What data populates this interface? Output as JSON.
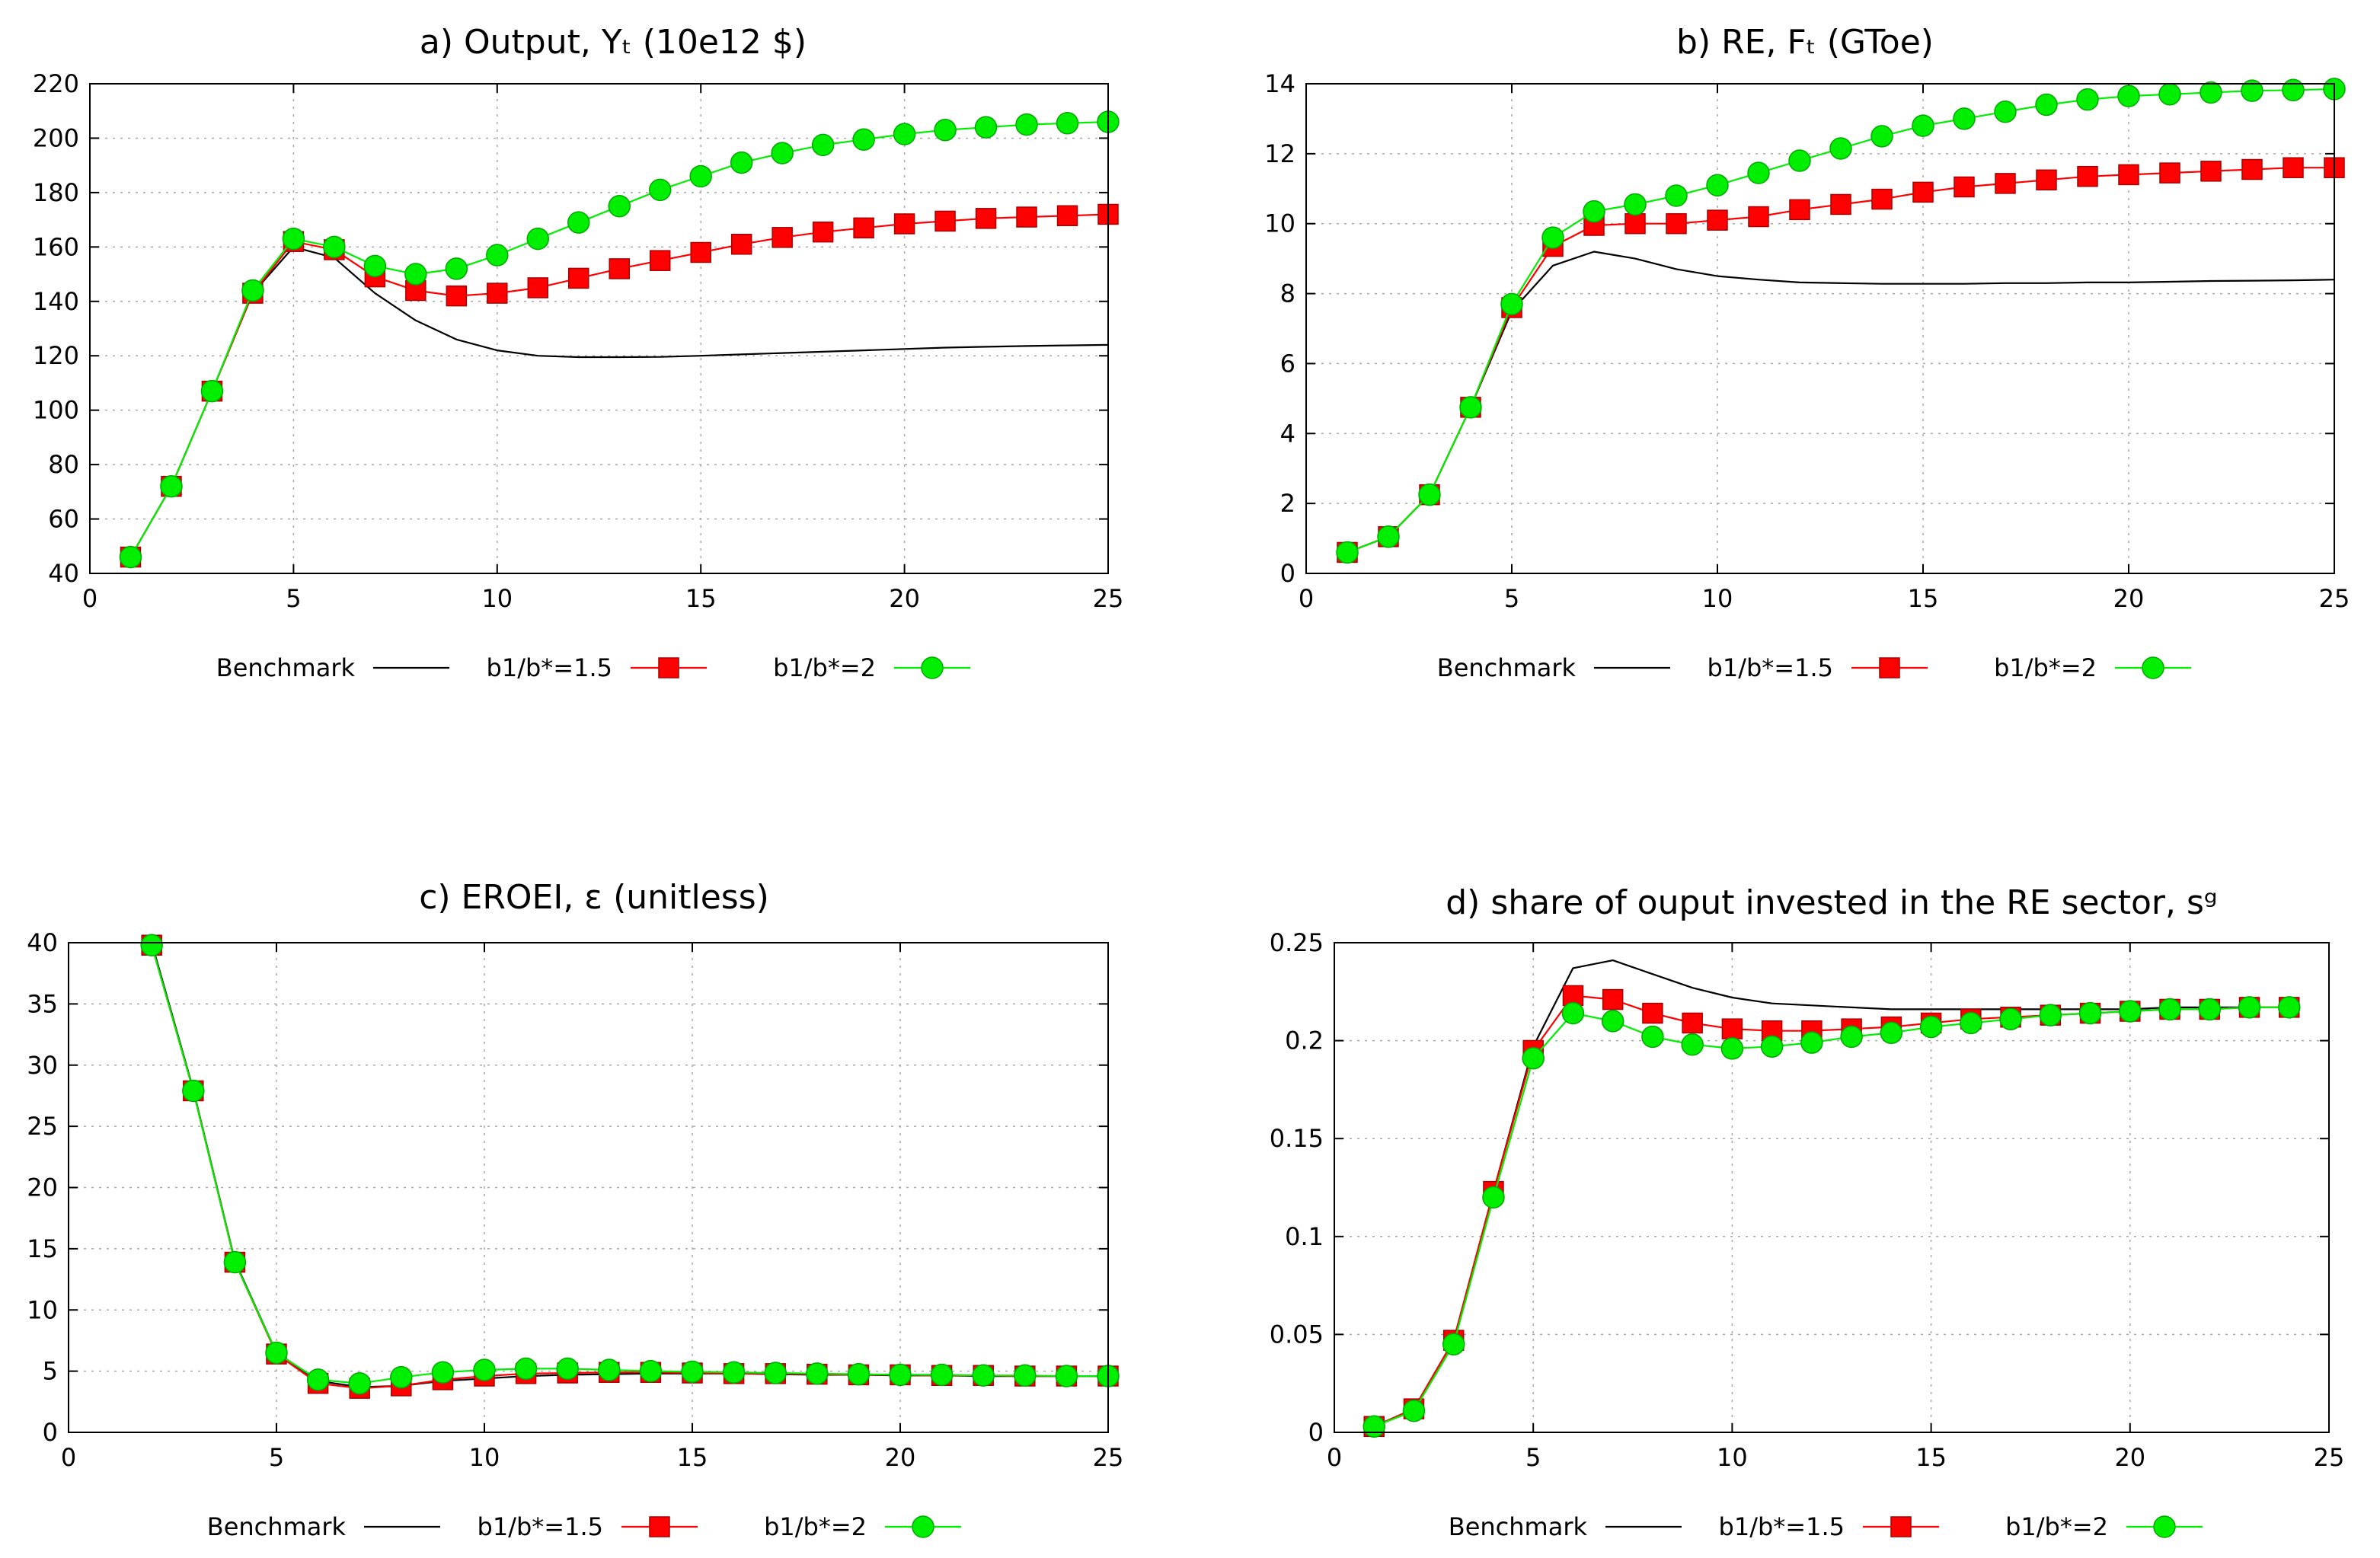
{
  "legend_labels": {
    "benchmark": "Benchmark",
    "b15": "b1/b*=1.5",
    "b2": "b1/b*=2"
  },
  "colors": {
    "benchmark": "#000000",
    "b15": "#ff0000",
    "b2": "#00ee00",
    "marker_edge_b15": "#aa0000",
    "marker_edge_b2": "#00aa00"
  },
  "chart_data": [
    {
      "id": "a",
      "type": "line",
      "title": "a) Output, Yₜ (10e12 $)",
      "xlim": [
        0,
        25
      ],
      "ylim": [
        40,
        220
      ],
      "xticks": [
        0,
        5,
        10,
        15,
        20,
        25
      ],
      "yticks": [
        40,
        60,
        80,
        100,
        120,
        140,
        160,
        180,
        200,
        220
      ],
      "grid": true,
      "legend_position": "below",
      "series": [
        {
          "name": "Benchmark",
          "marker": "none",
          "x": [
            1,
            2,
            3,
            4,
            5,
            6,
            7,
            8,
            9,
            10,
            11,
            12,
            13,
            14,
            15,
            16,
            17,
            18,
            19,
            20,
            21,
            22,
            23,
            24,
            25
          ],
          "values": [
            46,
            72,
            107,
            143,
            160,
            156,
            143,
            133,
            126,
            122,
            120,
            119.5,
            119.5,
            119.6,
            120,
            120.5,
            121,
            121.5,
            122,
            122.5,
            123,
            123.3,
            123.6,
            123.8,
            124
          ]
        },
        {
          "name": "b1/b*=1.5",
          "marker": "square",
          "x": [
            1,
            2,
            3,
            4,
            5,
            6,
            7,
            8,
            9,
            10,
            11,
            12,
            13,
            14,
            15,
            16,
            17,
            18,
            19,
            20,
            21,
            22,
            23,
            24,
            25
          ],
          "values": [
            46,
            72,
            107,
            143,
            162,
            159,
            149,
            144,
            142,
            143,
            145,
            148.5,
            152,
            155,
            158,
            161,
            163.5,
            165.5,
            167,
            168.5,
            169.5,
            170.5,
            171,
            171.5,
            172
          ]
        },
        {
          "name": "b1/b*=2",
          "marker": "circle",
          "x": [
            1,
            2,
            3,
            4,
            5,
            6,
            7,
            8,
            9,
            10,
            11,
            12,
            13,
            14,
            15,
            16,
            17,
            18,
            19,
            20,
            21,
            22,
            23,
            24,
            25
          ],
          "values": [
            46,
            72,
            107,
            144,
            163,
            160,
            153,
            150,
            152,
            157,
            163,
            169,
            175,
            181,
            186,
            191,
            194.5,
            197.5,
            199.5,
            201.5,
            203,
            204,
            205,
            205.5,
            206
          ]
        }
      ]
    },
    {
      "id": "b",
      "type": "line",
      "title": "b) RE, Fₜ (GToe)",
      "xlim": [
        0,
        25
      ],
      "ylim": [
        0,
        14
      ],
      "xticks": [
        0,
        5,
        10,
        15,
        20,
        25
      ],
      "yticks": [
        0,
        2,
        4,
        6,
        8,
        10,
        12,
        14
      ],
      "grid": true,
      "legend_position": "below",
      "series": [
        {
          "name": "Benchmark",
          "marker": "none",
          "x": [
            1,
            2,
            3,
            4,
            5,
            6,
            7,
            8,
            9,
            10,
            11,
            12,
            13,
            14,
            15,
            16,
            17,
            18,
            19,
            20,
            21,
            22,
            23,
            24,
            25
          ],
          "values": [
            0.6,
            1.05,
            2.25,
            4.75,
            7.5,
            8.8,
            9.2,
            9.0,
            8.7,
            8.5,
            8.4,
            8.32,
            8.3,
            8.28,
            8.28,
            8.28,
            8.3,
            8.3,
            8.32,
            8.32,
            8.34,
            8.36,
            8.37,
            8.38,
            8.4
          ]
        },
        {
          "name": "b1/b*=1.5",
          "marker": "square",
          "x": [
            1,
            2,
            3,
            4,
            5,
            6,
            7,
            8,
            9,
            10,
            11,
            12,
            13,
            14,
            15,
            16,
            17,
            18,
            19,
            20,
            21,
            22,
            23,
            24,
            25
          ],
          "values": [
            0.6,
            1.05,
            2.25,
            4.75,
            7.6,
            9.35,
            9.95,
            10.0,
            10.0,
            10.1,
            10.2,
            10.4,
            10.55,
            10.7,
            10.9,
            11.05,
            11.15,
            11.25,
            11.35,
            11.4,
            11.45,
            11.5,
            11.55,
            11.6,
            11.6
          ]
        },
        {
          "name": "b1/b*=2",
          "marker": "circle",
          "x": [
            1,
            2,
            3,
            4,
            5,
            6,
            7,
            8,
            9,
            10,
            11,
            12,
            13,
            14,
            15,
            16,
            17,
            18,
            19,
            20,
            21,
            22,
            23,
            24,
            25
          ],
          "values": [
            0.6,
            1.05,
            2.25,
            4.75,
            7.7,
            9.6,
            10.35,
            10.55,
            10.8,
            11.1,
            11.45,
            11.8,
            12.15,
            12.5,
            12.8,
            13.0,
            13.2,
            13.4,
            13.55,
            13.65,
            13.7,
            13.75,
            13.8,
            13.82,
            13.85
          ]
        }
      ]
    },
    {
      "id": "c",
      "type": "line",
      "title": "c) EROEI, ε (unitless)",
      "xlim": [
        0,
        25
      ],
      "ylim": [
        0,
        40
      ],
      "xticks": [
        0,
        5,
        10,
        15,
        20,
        25
      ],
      "yticks": [
        0,
        5,
        10,
        15,
        20,
        25,
        30,
        35,
        40
      ],
      "grid": true,
      "legend_position": "below",
      "series": [
        {
          "name": "Benchmark",
          "marker": "none",
          "x": [
            2,
            3,
            4,
            5,
            6,
            7,
            8,
            9,
            10,
            11,
            12,
            13,
            14,
            15,
            16,
            17,
            18,
            19,
            20,
            21,
            22,
            23,
            24,
            25
          ],
          "values": [
            40,
            28,
            14,
            6.5,
            4.2,
            3.7,
            3.8,
            4.2,
            4.4,
            4.6,
            4.7,
            4.75,
            4.8,
            4.8,
            4.8,
            4.75,
            4.7,
            4.7,
            4.65,
            4.65,
            4.6,
            4.6,
            4.6,
            4.6
          ]
        },
        {
          "name": "b1/b*=1.5",
          "marker": "square",
          "x": [
            2,
            3,
            4,
            5,
            6,
            7,
            8,
            9,
            10,
            11,
            12,
            13,
            14,
            15,
            16,
            17,
            18,
            19,
            20,
            21,
            22,
            23,
            24,
            25
          ],
          "values": [
            39.8,
            27.9,
            13.9,
            6.4,
            4.0,
            3.6,
            3.8,
            4.3,
            4.6,
            4.8,
            4.85,
            4.9,
            4.9,
            4.85,
            4.8,
            4.8,
            4.75,
            4.7,
            4.7,
            4.65,
            4.65,
            4.6,
            4.6,
            4.6
          ]
        },
        {
          "name": "b1/b*=2",
          "marker": "circle",
          "x": [
            2,
            3,
            4,
            5,
            6,
            7,
            8,
            9,
            10,
            11,
            12,
            13,
            14,
            15,
            16,
            17,
            18,
            19,
            20,
            21,
            22,
            23,
            24,
            25
          ],
          "values": [
            39.8,
            27.9,
            13.9,
            6.5,
            4.3,
            4.0,
            4.5,
            4.9,
            5.1,
            5.2,
            5.2,
            5.1,
            5.0,
            4.95,
            4.9,
            4.85,
            4.8,
            4.75,
            4.7,
            4.7,
            4.65,
            4.65,
            4.6,
            4.6
          ]
        }
      ]
    },
    {
      "id": "d",
      "type": "line",
      "title": "d) share of ouput invested in the RE sector, sᵍ",
      "xlim": [
        0,
        25
      ],
      "ylim": [
        0,
        0.25
      ],
      "xticks": [
        0,
        5,
        10,
        15,
        20,
        25
      ],
      "yticks": [
        0,
        0.05,
        0.1,
        0.15,
        0.2,
        0.25
      ],
      "grid": true,
      "legend_position": "below",
      "series": [
        {
          "name": "Benchmark",
          "marker": "none",
          "x": [
            1,
            2,
            3,
            4,
            5,
            6,
            7,
            8,
            9,
            10,
            11,
            12,
            13,
            14,
            15,
            16,
            17,
            18,
            19,
            20,
            21,
            22,
            23,
            24
          ],
          "values": [
            0.003,
            0.012,
            0.047,
            0.123,
            0.197,
            0.237,
            0.241,
            0.234,
            0.227,
            0.222,
            0.219,
            0.218,
            0.217,
            0.216,
            0.216,
            0.216,
            0.216,
            0.216,
            0.216,
            0.216,
            0.217,
            0.217,
            0.217,
            0.217
          ]
        },
        {
          "name": "b1/b*=1.5",
          "marker": "square",
          "x": [
            1,
            2,
            3,
            4,
            5,
            6,
            7,
            8,
            9,
            10,
            11,
            12,
            13,
            14,
            15,
            16,
            17,
            18,
            19,
            20,
            21,
            22,
            23,
            24
          ],
          "values": [
            0.003,
            0.012,
            0.047,
            0.123,
            0.195,
            0.223,
            0.221,
            0.214,
            0.209,
            0.206,
            0.205,
            0.205,
            0.206,
            0.207,
            0.209,
            0.211,
            0.212,
            0.213,
            0.214,
            0.215,
            0.216,
            0.216,
            0.217,
            0.217
          ]
        },
        {
          "name": "b1/b*=2",
          "marker": "circle",
          "x": [
            1,
            2,
            3,
            4,
            5,
            6,
            7,
            8,
            9,
            10,
            11,
            12,
            13,
            14,
            15,
            16,
            17,
            18,
            19,
            20,
            21,
            22,
            23,
            24
          ],
          "values": [
            0.003,
            0.011,
            0.045,
            0.12,
            0.191,
            0.214,
            0.21,
            0.202,
            0.198,
            0.196,
            0.197,
            0.199,
            0.202,
            0.204,
            0.207,
            0.209,
            0.211,
            0.213,
            0.214,
            0.215,
            0.216,
            0.216,
            0.217,
            0.217
          ]
        }
      ]
    }
  ]
}
